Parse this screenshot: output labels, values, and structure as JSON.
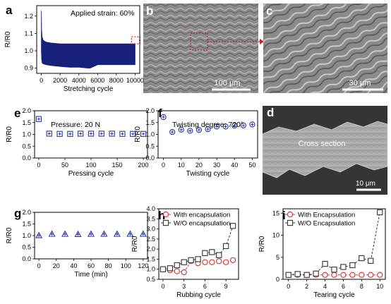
{
  "panel_labels": [
    "a",
    "b",
    "c",
    "d",
    "e",
    "f",
    "g",
    "h",
    "i"
  ],
  "images": {
    "b": {
      "scalebar": "100 μm"
    },
    "c": {
      "scalebar": "30 μm"
    },
    "d": {
      "caption": "Cross section",
      "scalebar": "10 μm"
    }
  },
  "colors": {
    "navy": "#17207a",
    "blue_marker": "#2b3aa8",
    "red": "#d62e2e",
    "dark_marker": "#333333",
    "callout": "#c0282d"
  },
  "chart_data": [
    {
      "id": "a",
      "type": "area",
      "annotation": "Applied strain: 60%",
      "xlabel": "Stretching cycle",
      "ylabel": "R/R0",
      "xlim": [
        -500,
        10500
      ],
      "ylim": [
        0.87,
        1.26
      ],
      "xticks": [
        0,
        2000,
        4000,
        6000,
        8000,
        10000
      ],
      "yticks": [
        0.9,
        1.0,
        1.1,
        1.2
      ],
      "x": [
        0,
        30,
        80,
        200,
        500,
        1000,
        2000,
        3000,
        4000,
        5000,
        5200,
        6000,
        8000,
        10000
      ],
      "upper": [
        1.23,
        1.12,
        1.08,
        1.06,
        1.05,
        1.045,
        1.04,
        1.04,
        1.04,
        1.04,
        1.04,
        1.04,
        1.04,
        1.04
      ],
      "lower": [
        1.0,
        0.95,
        0.93,
        0.925,
        0.92,
        0.915,
        0.91,
        0.905,
        0.905,
        0.9,
        0.9,
        0.92,
        0.92,
        0.92
      ]
    },
    {
      "id": "e",
      "type": "scatter",
      "annotation": "Pressure: 20 N",
      "xlabel": "Pressing cycle",
      "ylabel": "R/R0",
      "xlim": [
        -8,
        208
      ],
      "ylim": [
        0,
        2.0
      ],
      "xticks": [
        0,
        50,
        100,
        150,
        200
      ],
      "yticks": [
        0.0,
        0.5,
        1.0,
        1.5,
        2.0
      ],
      "series": [
        {
          "marker": "square-plus",
          "x": [
            0,
            20,
            40,
            60,
            80,
            100,
            120,
            140,
            160,
            180,
            200
          ],
          "y": [
            1.65,
            1.03,
            1.02,
            1.02,
            1.03,
            1.03,
            1.03,
            1.03,
            1.02,
            1.02,
            1.02
          ]
        }
      ]
    },
    {
      "id": "f",
      "type": "scatter",
      "annotation": "Twisting degree: 720°",
      "xlabel": "Twisting cycle",
      "ylabel": "R/R0",
      "xlim": [
        -3,
        53
      ],
      "ylim": [
        0,
        2.0
      ],
      "xticks": [
        0,
        10,
        20,
        30,
        40,
        50
      ],
      "yticks": [
        0.0,
        0.5,
        1.0,
        1.5,
        2.0
      ],
      "series": [
        {
          "marker": "circle-plus",
          "x": [
            0,
            5,
            10,
            15,
            20,
            25,
            30,
            35,
            40,
            45,
            50
          ],
          "y": [
            1.73,
            1.1,
            1.2,
            1.15,
            1.19,
            1.22,
            1.33,
            1.33,
            1.37,
            1.38,
            1.42
          ]
        }
      ]
    },
    {
      "id": "g",
      "type": "scatter",
      "xlabel": "Time (min)",
      "ylabel": "R/R0",
      "xlim": [
        -5,
        125
      ],
      "ylim": [
        0,
        2.0
      ],
      "xticks": [
        0,
        20,
        40,
        60,
        80,
        100,
        120
      ],
      "yticks": [
        0.0,
        0.5,
        1.0,
        1.5,
        2.0
      ],
      "series": [
        {
          "marker": "triangle-plus",
          "x": [
            0,
            15,
            30,
            45,
            60,
            75,
            90,
            105,
            120
          ],
          "y": [
            1.0,
            1.06,
            1.06,
            1.05,
            1.06,
            1.06,
            1.06,
            1.06,
            1.06
          ]
        }
      ]
    },
    {
      "id": "h",
      "type": "line",
      "xlabel": "Rubbing cycle",
      "ylabel": "R/R0",
      "xlim": [
        -0.6,
        10.8
      ],
      "ylim": [
        0.5,
        4.0
      ],
      "xticks": [
        0,
        3,
        6,
        9
      ],
      "yticks": [
        0.5,
        1.0,
        1.5,
        2.0,
        2.5,
        3.0,
        3.5,
        4.0
      ],
      "legend": "top-left",
      "series": [
        {
          "name": "With encapsulation",
          "marker": "circle",
          "color": "#d62e2e",
          "x": [
            0,
            1,
            2,
            3,
            4,
            5,
            6,
            7,
            8,
            9,
            10
          ],
          "y": [
            1.0,
            0.95,
            0.9,
            0.85,
            1.4,
            1.3,
            1.35,
            1.35,
            1.4,
            1.35,
            1.45
          ]
        },
        {
          "name": "W/O encapsulation",
          "marker": "square",
          "color": "#333333",
          "x": [
            0,
            1,
            2,
            3,
            4,
            5,
            6,
            7,
            8,
            9,
            10
          ],
          "y": [
            1.0,
            1.05,
            1.2,
            1.35,
            1.45,
            1.5,
            1.8,
            1.85,
            1.7,
            2.15,
            3.15
          ],
          "err": [
            0.1,
            0.1,
            0.1,
            0.1,
            0.12,
            0.12,
            0.15,
            0.15,
            0.12,
            0.15,
            0.15
          ]
        }
      ]
    },
    {
      "id": "i",
      "type": "line",
      "xlabel": "Tearing cycle",
      "ylabel": "R/R0",
      "xlim": [
        -0.6,
        10.6
      ],
      "ylim": [
        0,
        16
      ],
      "xticks": [
        0,
        2,
        4,
        6,
        8,
        10
      ],
      "yticks": [
        0,
        5,
        10,
        15
      ],
      "legend": "top-left",
      "series": [
        {
          "name": "With Encapsulation",
          "marker": "circle",
          "color": "#d62e2e",
          "x": [
            0,
            1,
            2,
            3,
            4,
            5,
            6,
            7,
            8,
            9,
            10
          ],
          "y": [
            1,
            1,
            1,
            1,
            1,
            1,
            1,
            1,
            1,
            1,
            1
          ]
        },
        {
          "name": "W/O Encapsulation",
          "marker": "square",
          "color": "#333333",
          "x": [
            0,
            1,
            2,
            3,
            4,
            5,
            6,
            7,
            8,
            9,
            10
          ],
          "y": [
            1.0,
            1.2,
            1.0,
            1.3,
            3.5,
            2.2,
            2.8,
            3.2,
            4.8,
            4.2,
            15.2
          ]
        }
      ]
    }
  ]
}
